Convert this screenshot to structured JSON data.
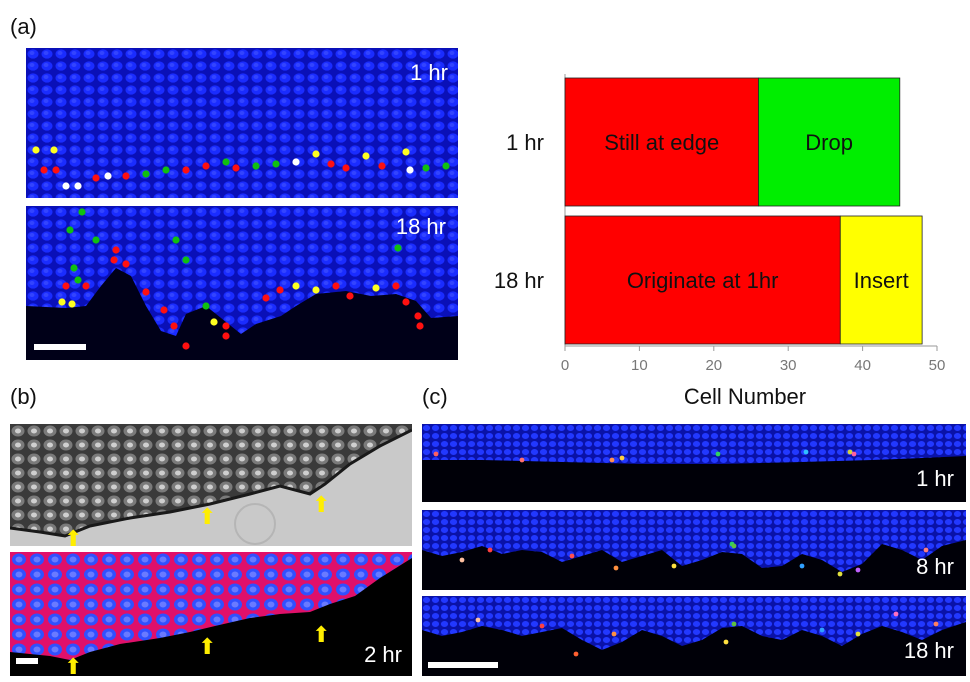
{
  "figure": {
    "panel_a": {
      "label": "(a)",
      "top_image_time": "1 hr",
      "bottom_image_time": "18 hr"
    },
    "panel_b": {
      "label": "(b)",
      "bottom_image_time": "2 hr"
    },
    "panel_c": {
      "label": "(c)",
      "times": [
        "1 hr",
        "8 hr",
        "18 hr"
      ]
    }
  },
  "chart_data": {
    "type": "bar",
    "orientation": "horizontal",
    "stacked": true,
    "categories": [
      "1 hr",
      "18 hr"
    ],
    "series": [
      {
        "values": [
          26,
          37
        ],
        "labels": [
          "Still at edge",
          "Originate at 1hr"
        ],
        "color": "#ff0000"
      },
      {
        "values": [
          19,
          0
        ],
        "labels": [
          "Drop",
          ""
        ],
        "color": "#00ee00"
      },
      {
        "values": [
          0,
          11
        ],
        "labels": [
          "",
          "Insert"
        ],
        "color": "#ffff00"
      }
    ],
    "xlabel": "Cell Number",
    "xlim": [
      0,
      50
    ],
    "xticks": [
      0,
      10,
      20,
      30,
      40,
      50
    ],
    "grid": false
  }
}
